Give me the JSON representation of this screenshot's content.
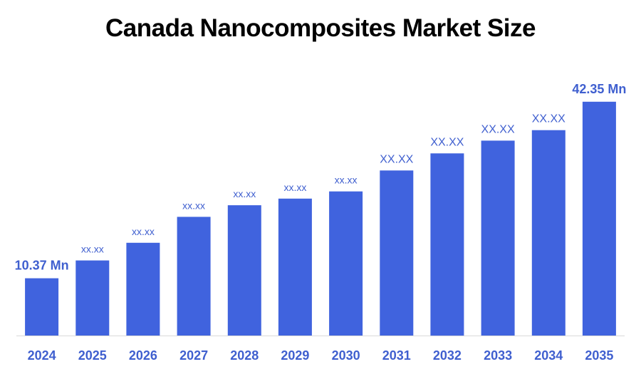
{
  "chart_data": {
    "type": "bar",
    "title": "Canada Nanocomposites Market Size",
    "categories": [
      "2024",
      "2025",
      "2026",
      "2027",
      "2028",
      "2029",
      "2030",
      "2031",
      "2032",
      "2033",
      "2034",
      "2035"
    ],
    "values": [
      10.37,
      13.6,
      16.8,
      21.5,
      23.6,
      24.8,
      26.1,
      29.9,
      33.0,
      35.3,
      37.2,
      42.35
    ],
    "data_labels": [
      "10.37 Mn",
      "xx.xx",
      "xx.xx",
      "xx.xx",
      "xx.xx",
      "xx.xx",
      "xx.xx",
      "XX.XX",
      "XX.XX",
      "XX.XX",
      "XX.XX",
      "42.35 Mn"
    ],
    "xlabel": "",
    "ylabel": "",
    "ylim": [
      0,
      48
    ],
    "grid": false,
    "legend": "none",
    "bar_color": "#4063DE",
    "label_color": "#3F5FCF"
  }
}
